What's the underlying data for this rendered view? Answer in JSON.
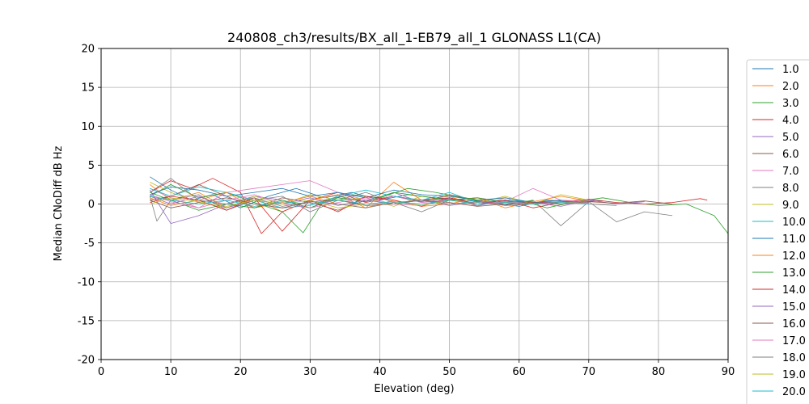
{
  "chart_data": {
    "type": "line",
    "title": "240808_ch3/results/BX_all_1-EB79_all_1 GLONASS L1(CA)",
    "xlabel": "Elevation (deg)",
    "ylabel": "Median CNoDiff dB Hz",
    "xlim": [
      0,
      90
    ],
    "ylim": [
      -20,
      20
    ],
    "xticks": [
      0,
      10,
      20,
      30,
      40,
      50,
      60,
      70,
      80,
      90
    ],
    "yticks": [
      -20,
      -15,
      -10,
      -5,
      0,
      5,
      10,
      15,
      20
    ],
    "grid": true,
    "legend_position": "right (outside plot, cut off)",
    "series": [
      {
        "name": "1.0",
        "color": "#1f77b4",
        "x": [
          7,
          10,
          13,
          16,
          20,
          24,
          28,
          32,
          36,
          40,
          44,
          48,
          52,
          56,
          60,
          64,
          68,
          72
        ],
        "y": [
          3.5,
          1.8,
          0.5,
          1.2,
          -0.5,
          1.0,
          2.0,
          0.8,
          1.5,
          0.5,
          1.2,
          0.8,
          0.5,
          0.2,
          -0.3,
          0.5,
          0.3,
          0.4
        ]
      },
      {
        "name": "2.0",
        "color": "#ff7f0e",
        "x": [
          7,
          10,
          14,
          18,
          22,
          26,
          30,
          34,
          38,
          42,
          46,
          50,
          54,
          58,
          62,
          66
        ],
        "y": [
          2.5,
          0.5,
          1.5,
          -0.5,
          0.8,
          -1.0,
          0.5,
          1.2,
          -0.5,
          2.8,
          0.5,
          1.0,
          -0.3,
          0.8,
          0.2,
          0.5
        ]
      },
      {
        "name": "3.0",
        "color": "#2ca02c",
        "x": [
          7,
          10,
          14,
          18,
          22,
          26,
          29,
          32,
          36,
          40,
          44,
          48,
          52,
          56,
          60,
          64,
          68,
          72,
          76,
          80,
          84,
          88,
          90
        ],
        "y": [
          1.0,
          2.5,
          0.8,
          1.5,
          0.2,
          -1.0,
          -3.7,
          0.5,
          1.2,
          0.8,
          2.0,
          1.5,
          0.8,
          0.0,
          0.5,
          -0.5,
          0.3,
          0.8,
          0.2,
          -0.2,
          0.0,
          -1.5,
          -3.8
        ]
      },
      {
        "name": "4.0",
        "color": "#d62728",
        "x": [
          7,
          10,
          13,
          16,
          20,
          23,
          26,
          30,
          34,
          38,
          42,
          46,
          50,
          54,
          58,
          62,
          66,
          70,
          74,
          78,
          82,
          86,
          87
        ],
        "y": [
          1.5,
          3.0,
          2.0,
          3.3,
          1.5,
          -3.8,
          -1.0,
          0.5,
          1.5,
          0.2,
          1.0,
          0.5,
          0.8,
          0.0,
          0.5,
          0.2,
          0.3,
          0.6,
          0.2,
          0.0,
          0.2,
          0.7,
          0.5
        ]
      },
      {
        "name": "5.0",
        "color": "#9467bd",
        "x": [
          7,
          10,
          14,
          18,
          22,
          26,
          30,
          34,
          38,
          42,
          46,
          50,
          54,
          58,
          62,
          66,
          70
        ],
        "y": [
          1.8,
          -2.5,
          -1.5,
          0.0,
          1.0,
          0.5,
          -0.5,
          1.0,
          0.3,
          1.5,
          0.2,
          0.8,
          -0.2,
          0.4,
          0.1,
          0.3,
          0.2
        ]
      },
      {
        "name": "6.0",
        "color": "#8c564b",
        "x": [
          7,
          10,
          14,
          18,
          22,
          26,
          30,
          34,
          38,
          42,
          46,
          50,
          54,
          58,
          62
        ],
        "y": [
          0.5,
          1.0,
          2.5,
          1.0,
          -0.5,
          0.8,
          0.2,
          -0.8,
          0.5,
          1.0,
          0.3,
          1.2,
          0.5,
          0.0,
          0.3
        ]
      },
      {
        "name": "7.0",
        "color": "#e377c2",
        "x": [
          7,
          10,
          14,
          18,
          22,
          26,
          30,
          34,
          38,
          42,
          46,
          50,
          54,
          58,
          62,
          66,
          70
        ],
        "y": [
          2.0,
          0.8,
          -0.5,
          1.5,
          2.0,
          2.5,
          3.0,
          1.5,
          0.5,
          1.0,
          0.2,
          0.5,
          0.8,
          0.3,
          2.0,
          0.5,
          0.3
        ]
      },
      {
        "name": "8.0",
        "color": "#7f7f7f",
        "x": [
          7,
          8,
          10,
          14,
          18,
          22,
          26,
          30,
          34,
          38,
          42,
          46,
          50,
          54,
          58,
          62,
          66,
          70,
          74,
          78,
          82
        ],
        "y": [
          1.0,
          -2.2,
          0.5,
          1.2,
          -0.8,
          0.5,
          1.0,
          -1.0,
          0.5,
          1.5,
          0.2,
          -1.0,
          0.5,
          0.8,
          -0.2,
          0.5,
          -2.8,
          0.3,
          -2.3,
          -1.0,
          -1.5
        ]
      },
      {
        "name": "9.0",
        "color": "#bcbd22",
        "x": [
          7,
          10,
          14,
          18,
          22,
          26,
          30,
          34,
          38,
          42,
          46,
          50,
          54,
          58,
          62,
          66,
          70
        ],
        "y": [
          2.8,
          1.5,
          0.2,
          -0.5,
          1.0,
          0.0,
          1.2,
          0.5,
          0.8,
          -0.3,
          1.0,
          0.5,
          0.2,
          1.0,
          0.0,
          1.2,
          0.5
        ]
      },
      {
        "name": "10.0",
        "color": "#17becf",
        "x": [
          7,
          10,
          14,
          18,
          22,
          26,
          30,
          34,
          38,
          42,
          46,
          50,
          54,
          58,
          62
        ],
        "y": [
          2.0,
          1.0,
          2.2,
          1.5,
          0.5,
          -0.5,
          -0.2,
          1.0,
          1.8,
          1.0,
          0.5,
          1.5,
          0.2,
          0.5,
          0.3
        ]
      },
      {
        "name": "11.0",
        "color": "#1f77b4",
        "x": [
          7,
          10,
          14,
          18,
          22,
          26,
          30,
          34,
          38,
          42,
          46,
          50,
          54,
          58,
          62,
          66
        ],
        "y": [
          1.2,
          2.2,
          1.8,
          1.0,
          1.5,
          2.0,
          1.0,
          1.5,
          0.8,
          1.8,
          1.2,
          1.0,
          0.5,
          0.8,
          0.2,
          0.5
        ]
      },
      {
        "name": "12.0",
        "color": "#ff7f0e",
        "x": [
          7,
          10,
          14,
          18,
          22,
          26,
          30,
          34,
          38,
          42,
          46,
          50,
          54,
          58,
          62,
          66,
          70
        ],
        "y": [
          0.8,
          -0.2,
          0.5,
          1.5,
          -0.5,
          0.2,
          1.0,
          0.0,
          -0.5,
          0.5,
          -0.3,
          0.0,
          0.8,
          -0.5,
          0.3,
          1.0,
          0.4
        ]
      },
      {
        "name": "13.0",
        "color": "#2ca02c",
        "x": [
          7,
          10,
          14,
          18,
          22,
          26,
          30,
          34,
          38,
          42,
          46,
          50,
          54,
          58,
          62
        ],
        "y": [
          1.5,
          0.5,
          -0.8,
          0.0,
          -0.5,
          0.5,
          -0.5,
          0.8,
          0.3,
          1.5,
          1.0,
          0.5,
          0.8,
          0.2,
          0.4
        ]
      },
      {
        "name": "14.0",
        "color": "#d62728",
        "x": [
          7,
          10,
          14,
          18,
          22,
          26,
          30,
          34,
          38,
          42,
          46,
          50,
          54,
          58,
          62,
          66
        ],
        "y": [
          0.2,
          1.0,
          0.5,
          -0.8,
          0.8,
          -3.5,
          0.5,
          -1.0,
          1.0,
          0.5,
          -0.3,
          0.8,
          0.0,
          0.5,
          -0.5,
          0.2
        ]
      },
      {
        "name": "15.0",
        "color": "#9467bd",
        "x": [
          7,
          10,
          14,
          18,
          22,
          26,
          30,
          34,
          38,
          42,
          46,
          50,
          54,
          58,
          62,
          66,
          70,
          74,
          78
        ],
        "y": [
          1.0,
          0.0,
          1.0,
          -0.5,
          0.5,
          0.0,
          0.8,
          -0.2,
          0.5,
          0.0,
          0.5,
          -0.2,
          0.3,
          0.0,
          0.2,
          -0.3,
          0.5,
          0.0,
          0.3
        ]
      },
      {
        "name": "16.0",
        "color": "#8c564b",
        "x": [
          7,
          10,
          14,
          18,
          22,
          26,
          30,
          34,
          38,
          42,
          46,
          50,
          54,
          58,
          62,
          66,
          70,
          74,
          78,
          82
        ],
        "y": [
          0.5,
          -0.5,
          0.2,
          0.8,
          0.0,
          -0.5,
          0.3,
          0.5,
          -0.2,
          0.0,
          0.5,
          0.2,
          -0.3,
          0.0,
          0.2,
          0.0,
          0.3,
          0.1,
          0.4,
          0.0
        ]
      },
      {
        "name": "17.0",
        "color": "#e377c2",
        "x": [
          7,
          10,
          14,
          18,
          22,
          26,
          30,
          34,
          38,
          42,
          46,
          50,
          54,
          58,
          62,
          66,
          70
        ],
        "y": [
          1.2,
          0.3,
          -0.5,
          0.5,
          1.2,
          0.0,
          -0.5,
          0.2,
          0.8,
          0.0,
          -0.2,
          0.5,
          0.0,
          0.3,
          0.0,
          0.2,
          0.1
        ]
      },
      {
        "name": "18.0",
        "color": "#7f7f7f",
        "x": [
          7,
          10,
          14,
          18,
          22,
          26,
          30,
          34,
          38,
          42,
          46,
          50,
          54,
          58,
          62,
          66,
          70,
          74
        ],
        "y": [
          1.5,
          3.3,
          0.5,
          0.0,
          0.8,
          -0.3,
          0.3,
          0.0,
          -0.5,
          0.2,
          0.5,
          0.0,
          0.3,
          -0.2,
          0.0,
          0.3,
          0.0,
          -0.2
        ]
      },
      {
        "name": "19.0",
        "color": "#bcbd22",
        "x": [
          7,
          10,
          14,
          18,
          22,
          26,
          30,
          34,
          38,
          42,
          46,
          50,
          54,
          58,
          62,
          66,
          70
        ],
        "y": [
          0.0,
          0.8,
          0.3,
          -0.3,
          0.5,
          0.0,
          0.5,
          -0.5,
          0.0,
          0.3,
          -0.2,
          0.5,
          0.0,
          0.2,
          0.0,
          0.2,
          0.1
        ]
      },
      {
        "name": "20.0",
        "color": "#17becf",
        "x": [
          7,
          10,
          14,
          18,
          22,
          26,
          30,
          34,
          38,
          42,
          46,
          50,
          54,
          58,
          62,
          66,
          70
        ],
        "y": [
          1.0,
          0.5,
          0.0,
          0.5,
          -0.3,
          0.3,
          0.0,
          0.5,
          0.0,
          0.3,
          0.0,
          0.5,
          0.0,
          0.2,
          0.0,
          0.2,
          0.0
        ]
      }
    ]
  }
}
